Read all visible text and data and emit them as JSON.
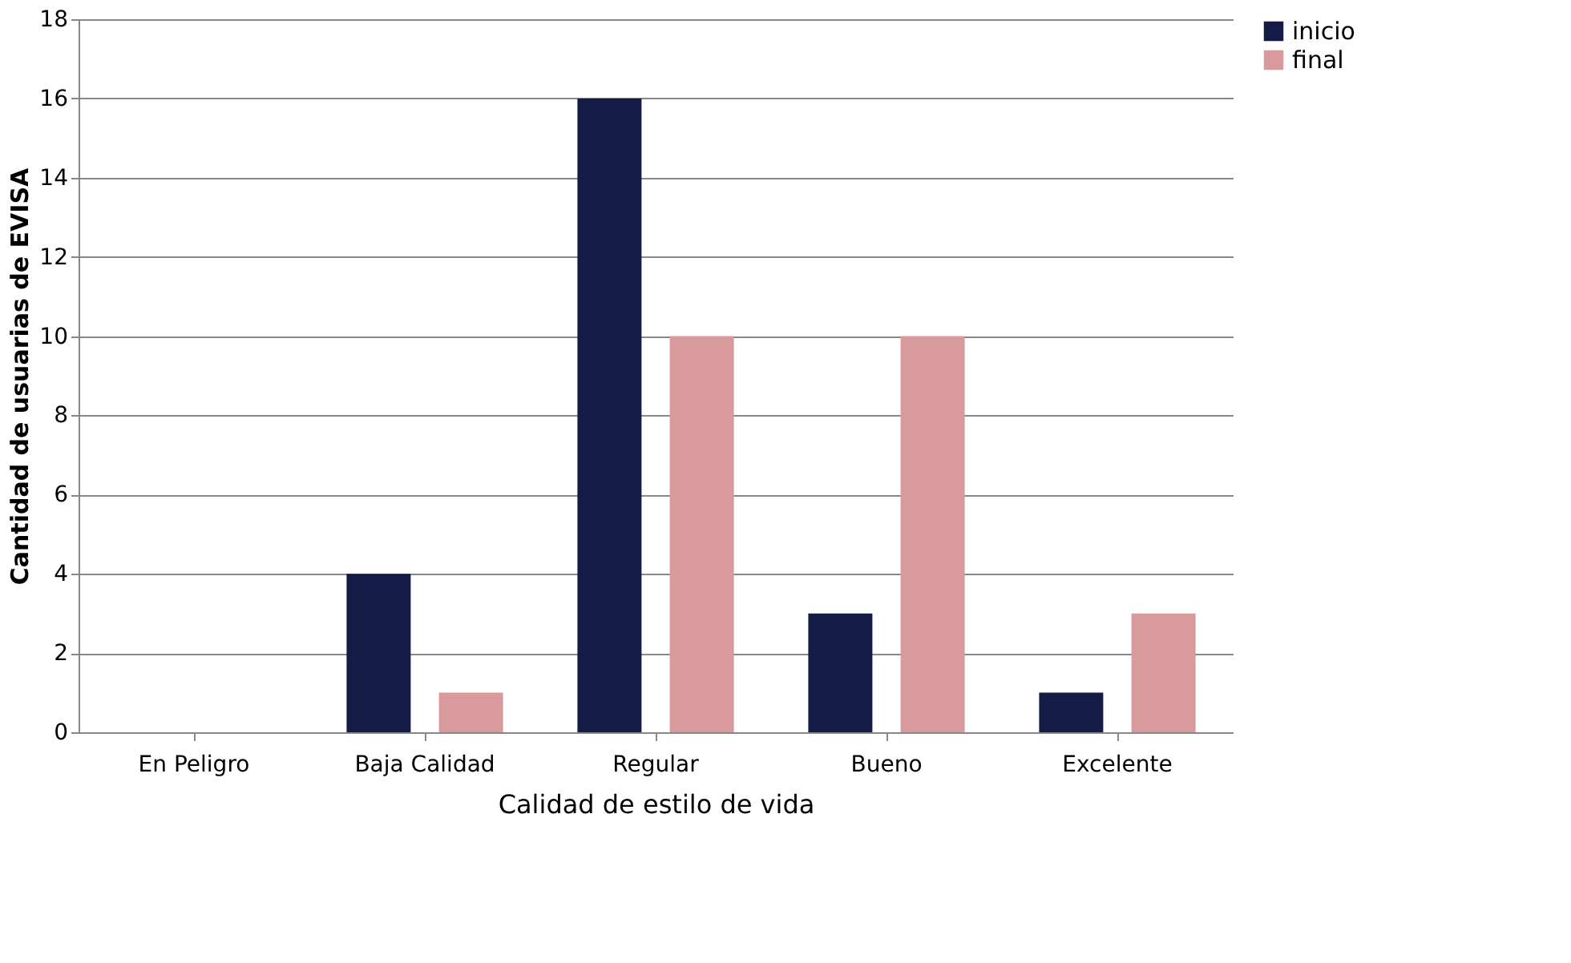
{
  "chart_data": {
    "type": "bar",
    "categories": [
      "En Peligro",
      "Baja Calidad",
      "Regular",
      "Bueno",
      "Excelente"
    ],
    "series": [
      {
        "name": "inicio",
        "color": "#141c45",
        "values": [
          0,
          4,
          16,
          3,
          1
        ]
      },
      {
        "name": "final",
        "color": "#d99a9e",
        "values": [
          0,
          1,
          10,
          10,
          3
        ]
      }
    ],
    "xlabel": "Calidad de estilo de vida",
    "ylabel": "Cantidad de usuarias de EVISA",
    "ylim": [
      0,
      18
    ],
    "yticks": [
      0,
      2,
      4,
      6,
      8,
      10,
      12,
      14,
      16,
      18
    ],
    "grid": "y",
    "legend": "right"
  }
}
